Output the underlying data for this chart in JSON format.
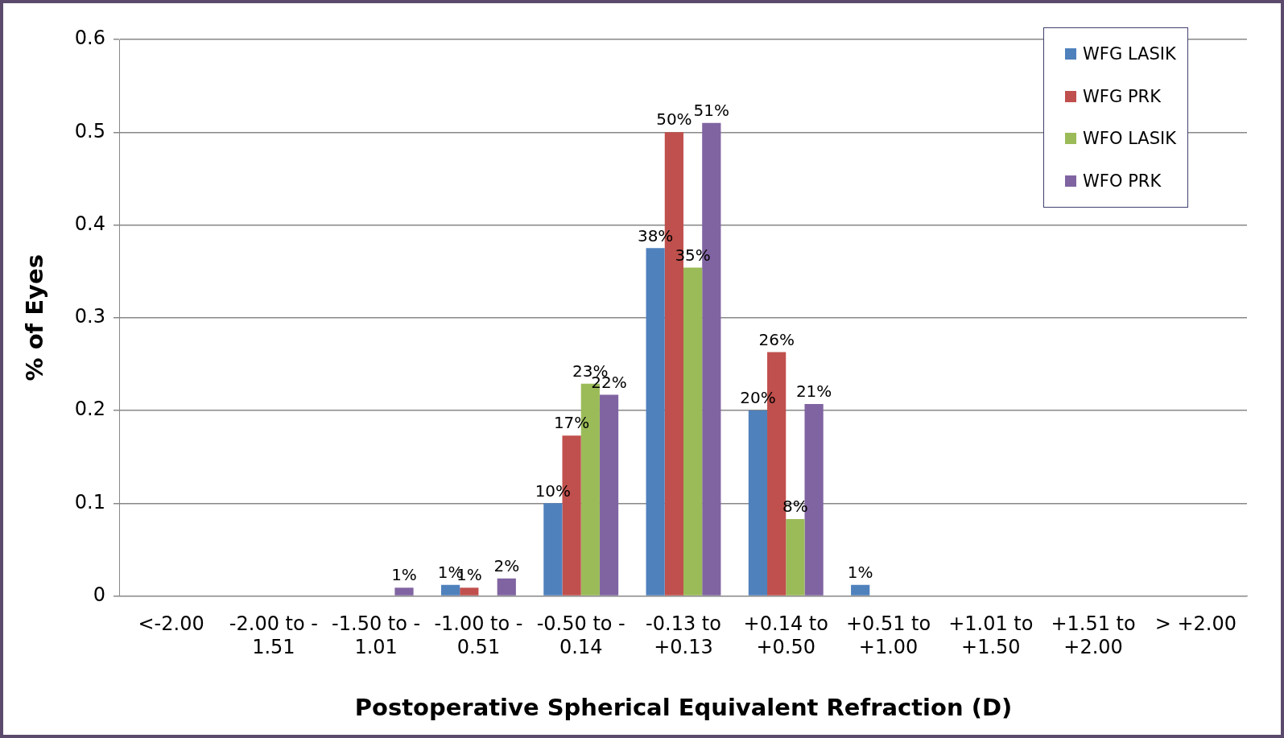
{
  "chart_data": {
    "type": "bar",
    "xlabel": "Postoperative Spherical Equivalent Refraction (D)",
    "ylabel": "% of Eyes",
    "categories": [
      "<-2.00",
      "-2.00 to -1.51",
      "-1.50 to -1.01",
      "-1.00 to -0.51",
      "-0.50 to -0.14",
      "-0.13 to +0.13",
      "+0.14 to +0.50",
      "+0.51 to +1.00",
      "+1.01 to +1.50",
      "+1.51 to +2.00",
      "> +2.00"
    ],
    "series": [
      {
        "name": "WFG LASIK",
        "color": "#4f81bd",
        "values": [
          0,
          0,
          0,
          0.012,
          0.1,
          0.375,
          0.2,
          0.012,
          0,
          0,
          0
        ],
        "value_labels": [
          null,
          null,
          null,
          "1%",
          "10%",
          "38%",
          "20%",
          "1%",
          null,
          null,
          null
        ]
      },
      {
        "name": "WFG PRK",
        "color": "#c0504d",
        "values": [
          0,
          0,
          0,
          0.009,
          0.173,
          0.5,
          0.263,
          0,
          0,
          0,
          0
        ],
        "value_labels": [
          null,
          null,
          null,
          "1%",
          "17%",
          "50%",
          "26%",
          null,
          null,
          null,
          null
        ]
      },
      {
        "name": "WFO LASIK",
        "color": "#9bbb59",
        "values": [
          0,
          0,
          0,
          0,
          0.229,
          0.354,
          0.083,
          0,
          0,
          0,
          0
        ],
        "value_labels": [
          null,
          null,
          null,
          null,
          "23%",
          "35%",
          "8%",
          null,
          null,
          null,
          null
        ]
      },
      {
        "name": "WFO PRK",
        "color": "#8064a2",
        "values": [
          0,
          0,
          0.009,
          0.019,
          0.217,
          0.51,
          0.207,
          0,
          0,
          0,
          0
        ],
        "value_labels": [
          null,
          null,
          "1%",
          "2%",
          "22%",
          "51%",
          "21%",
          null,
          null,
          null,
          null
        ]
      }
    ],
    "ylim": [
      0,
      0.6
    ],
    "yticks": [
      0,
      0.1,
      0.2,
      0.3,
      0.4,
      0.5,
      0.6
    ],
    "grid": "y",
    "legend": "top right"
  }
}
